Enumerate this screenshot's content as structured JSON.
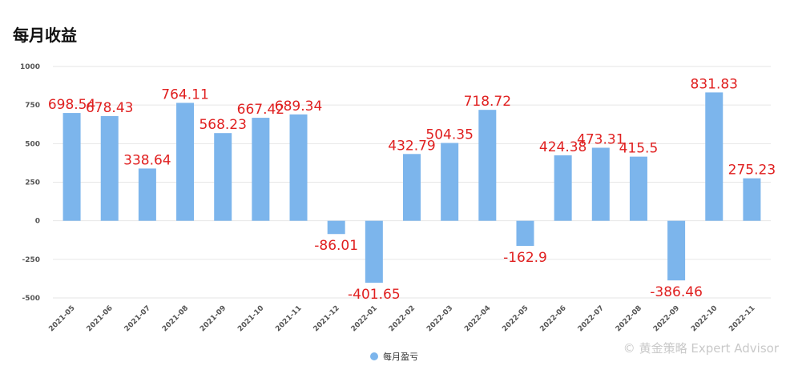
{
  "title": "每月收益",
  "watermark": "黄金策略 Expert Advisor",
  "chart_data": {
    "type": "bar",
    "title": "每月收益",
    "categories": [
      "2021-05",
      "2021-06",
      "2021-07",
      "2021-08",
      "2021-09",
      "2021-10",
      "2021-11",
      "2021-12",
      "2022-01",
      "2022-02",
      "2022-03",
      "2022-04",
      "2022-05",
      "2022-06",
      "2022-07",
      "2022-08",
      "2022-09",
      "2022-10",
      "2022-11"
    ],
    "series": [
      {
        "name": "每月盈亏",
        "values": [
          698.54,
          678.43,
          338.64,
          764.11,
          568.23,
          667.42,
          689.34,
          -86.01,
          -401.65,
          432.79,
          504.35,
          718.72,
          -162.9,
          424.38,
          473.31,
          415.5,
          -386.46,
          831.83,
          275.23
        ]
      }
    ],
    "ylim": [
      -500,
      1000
    ],
    "yticks": [
      1000,
      750,
      500,
      250,
      0,
      -250,
      -500
    ],
    "xlabel": "",
    "ylabel": "",
    "grid": true,
    "legend_position": "bottom-center",
    "bar_color": "#7cb5ec",
    "label_color": "#e02020"
  }
}
